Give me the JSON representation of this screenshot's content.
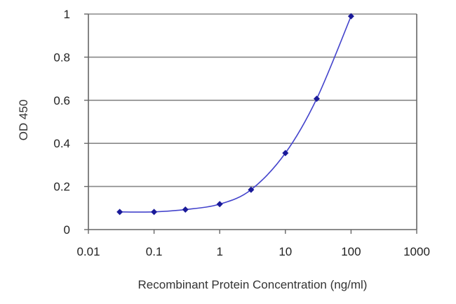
{
  "chart_data": {
    "type": "line",
    "title": "",
    "xlabel": "Recombinant Protein Concentration (ng/ml)",
    "ylabel": "OD 450",
    "x_scale": "log",
    "xlim": [
      0.01,
      1000
    ],
    "ylim": [
      0,
      1
    ],
    "x_ticks": [
      0.01,
      0.1,
      1,
      10,
      100,
      1000
    ],
    "x_tick_labels": [
      "0.01",
      "0.1",
      "1",
      "10",
      "100",
      "1000"
    ],
    "y_ticks": [
      0,
      0.2,
      0.4,
      0.6,
      0.8,
      1
    ],
    "y_tick_labels": [
      "0",
      "0.2",
      "0.4",
      "0.6",
      "0.8",
      "1"
    ],
    "grid": "horizontal",
    "legend": "none",
    "series": [
      {
        "x": [
          0.03,
          0.1,
          0.3,
          1,
          3,
          10,
          30,
          100
        ],
        "y": [
          0.082,
          0.082,
          0.093,
          0.118,
          0.185,
          0.355,
          0.607,
          0.99
        ]
      }
    ],
    "colors": {
      "line": "#4444cc",
      "marker": "#1a1a99",
      "grid": "#888888",
      "axis": "#666666"
    }
  }
}
